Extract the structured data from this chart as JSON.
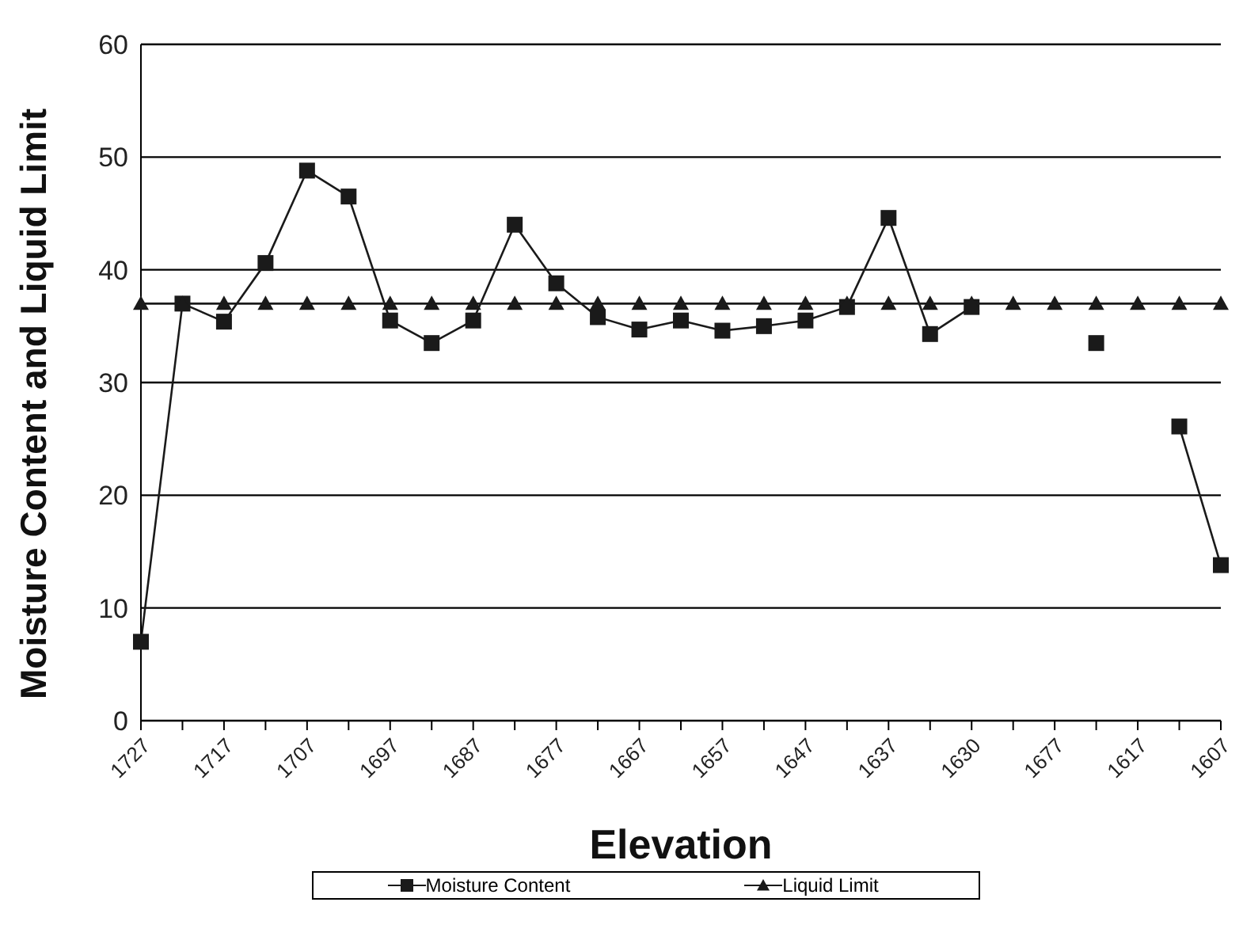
{
  "chart_data": {
    "type": "line",
    "xlabel": "Elevation",
    "ylabel": "Moisture Content and Liquid Limit",
    "categories": [
      "1727",
      null,
      "1717",
      null,
      "1707",
      null,
      "1697",
      null,
      "1687",
      null,
      "1677",
      null,
      "1667",
      null,
      "1657",
      null,
      "1647",
      null,
      "1637",
      null,
      "1630",
      null,
      "1677",
      null,
      "1617",
      null,
      "1607"
    ],
    "series": [
      {
        "name": "Moisture Content",
        "color": "#1a1a1a",
        "marker": "square",
        "values": [
          7.0,
          37.0,
          35.4,
          40.6,
          48.8,
          46.5,
          35.5,
          33.5,
          35.5,
          44.0,
          38.8,
          35.8,
          34.7,
          35.5,
          34.6,
          35.0,
          35.5,
          36.7,
          44.6,
          34.3,
          36.7,
          null,
          null,
          33.5,
          null,
          26.1,
          13.8
        ]
      },
      {
        "name": "Liquid Limit",
        "color": "#1a1a1a",
        "marker": "triangle",
        "values": [
          37,
          37,
          37,
          37,
          37,
          37,
          37,
          37,
          37,
          37,
          37,
          37,
          37,
          37,
          37,
          37,
          37,
          37,
          37,
          37,
          37,
          37,
          37,
          37,
          37,
          37,
          37
        ]
      }
    ],
    "ylim": [
      0,
      60
    ],
    "yticks": [
      0,
      10,
      20,
      30,
      40,
      50,
      60
    ],
    "grid": "y",
    "legend": "bottom"
  }
}
